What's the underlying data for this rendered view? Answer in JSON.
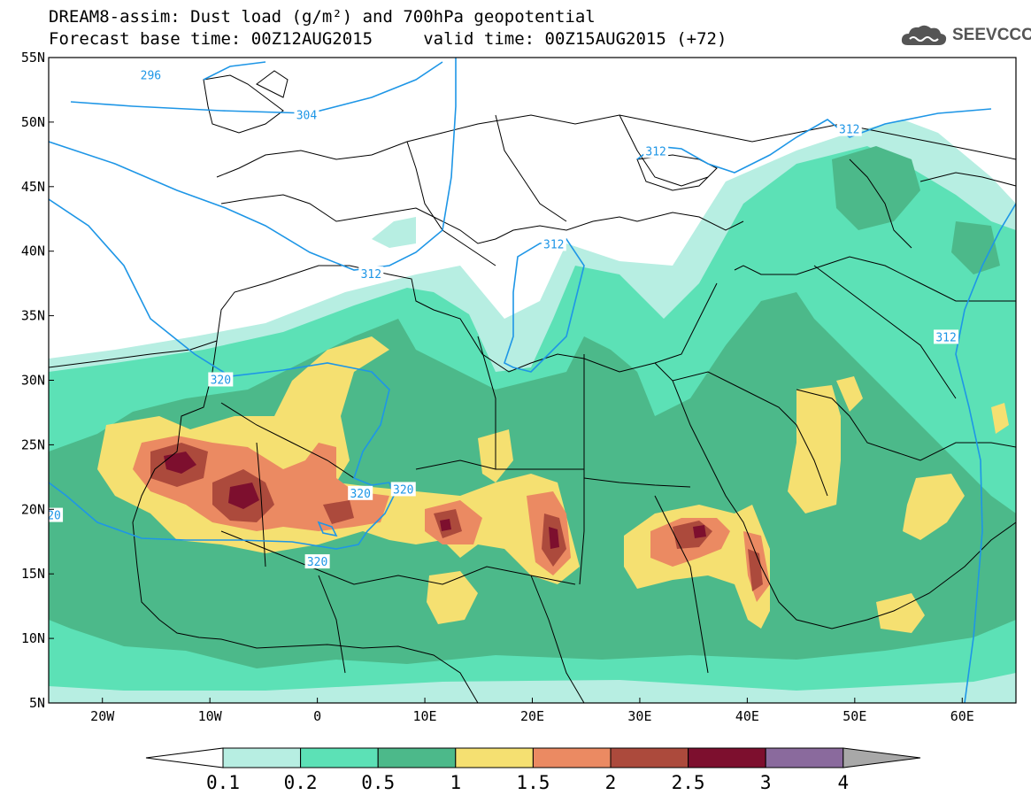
{
  "header": {
    "title_line1": "DREAM8-assim: Dust load (g/m²) and 700hPa geopotential",
    "title_line2": "Forecast base time: 00Z12AUG2015     valid time: 00Z15AUG2015 (+72)",
    "logo_text": "SEEVCCC"
  },
  "map": {
    "lon_range": [
      -25,
      65
    ],
    "lat_range": [
      5,
      55
    ],
    "lon_ticks": [
      {
        "lon": -20,
        "label": "20W"
      },
      {
        "lon": -10,
        "label": "10W"
      },
      {
        "lon": 0,
        "label": "0"
      },
      {
        "lon": 10,
        "label": "10E"
      },
      {
        "lon": 20,
        "label": "20E"
      },
      {
        "lon": 30,
        "label": "30E"
      },
      {
        "lon": 40,
        "label": "40E"
      },
      {
        "lon": 50,
        "label": "50E"
      },
      {
        "lon": 60,
        "label": "60E"
      }
    ],
    "lat_ticks": [
      {
        "lat": 55,
        "label": "55N"
      },
      {
        "lat": 50,
        "label": "50N"
      },
      {
        "lat": 45,
        "label": "45N"
      },
      {
        "lat": 40,
        "label": "40N"
      },
      {
        "lat": 35,
        "label": "35N"
      },
      {
        "lat": 30,
        "label": "30N"
      },
      {
        "lat": 25,
        "label": "25N"
      },
      {
        "lat": 20,
        "label": "20N"
      },
      {
        "lat": 15,
        "label": "15N"
      },
      {
        "lat": 10,
        "label": "10N"
      },
      {
        "lat": 5,
        "label": "5N"
      }
    ],
    "contour_labels": [
      {
        "text": "296",
        "lon": -15.5,
        "lat": 53.6
      },
      {
        "text": "304",
        "lon": -1,
        "lat": 50.5
      },
      {
        "text": "312",
        "lon": 5,
        "lat": 38.2
      },
      {
        "text": "312",
        "lon": 22,
        "lat": 40.5
      },
      {
        "text": "312",
        "lon": 31.5,
        "lat": 47.7
      },
      {
        "text": "312",
        "lon": 49.5,
        "lat": 49.4
      },
      {
        "text": "312",
        "lon": 58.5,
        "lat": 33.3
      },
      {
        "text": "320",
        "lon": -9,
        "lat": 30.0
      },
      {
        "text": "320",
        "lon": 4,
        "lat": 21.2
      },
      {
        "text": "320",
        "lon": 8,
        "lat": 21.5
      },
      {
        "text": "320",
        "lon": 0,
        "lat": 15.9
      },
      {
        "text": "20",
        "lon": -24.5,
        "lat": 19.5
      }
    ],
    "colors": {
      "contour": "#1e96e6",
      "border": "#000000"
    }
  },
  "colorbar": {
    "labels": [
      "0.1",
      "0.2",
      "0.5",
      "1",
      "1.5",
      "2",
      "2.5",
      "3",
      "4"
    ],
    "colors": [
      "#ffffff",
      "#b7eee2",
      "#5ce1b6",
      "#4cb98a",
      "#f5e071",
      "#eb8a62",
      "#ac4a3c",
      "#7d0f2e",
      "#8a6a9d",
      "#a8a8a8"
    ]
  }
}
